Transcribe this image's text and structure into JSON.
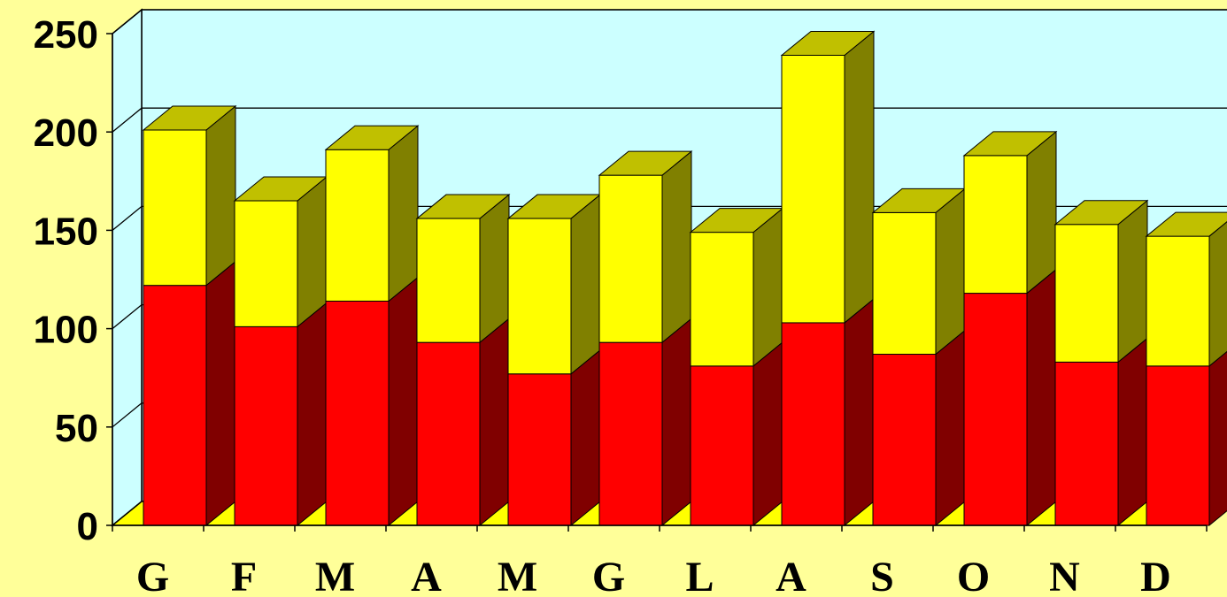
{
  "chart_data": {
    "type": "bar",
    "stacked": true,
    "three_d": true,
    "categories": [
      "G",
      "F",
      "M",
      "A",
      "M",
      "G",
      "L",
      "A",
      "S",
      "O",
      "N",
      "D"
    ],
    "series": [
      {
        "values": [
          122,
          101,
          114,
          93,
          77,
          93,
          81,
          103,
          87,
          118,
          83,
          81
        ],
        "color": "#ff0000",
        "side_color": "#800000"
      },
      {
        "values": [
          79,
          64,
          77,
          63,
          79,
          85,
          68,
          136,
          72,
          70,
          70,
          66
        ],
        "color": "#ffff00",
        "side_color": "#808000"
      }
    ],
    "yticks": [
      "0",
      "50",
      "100",
      "150",
      "200",
      "250"
    ],
    "ylim": [
      0,
      250
    ],
    "grid": true,
    "colors": {
      "page_background": "#ffff99",
      "back_wall": "#ccffff",
      "floor": "#ffff00",
      "axis": "#000000"
    }
  }
}
